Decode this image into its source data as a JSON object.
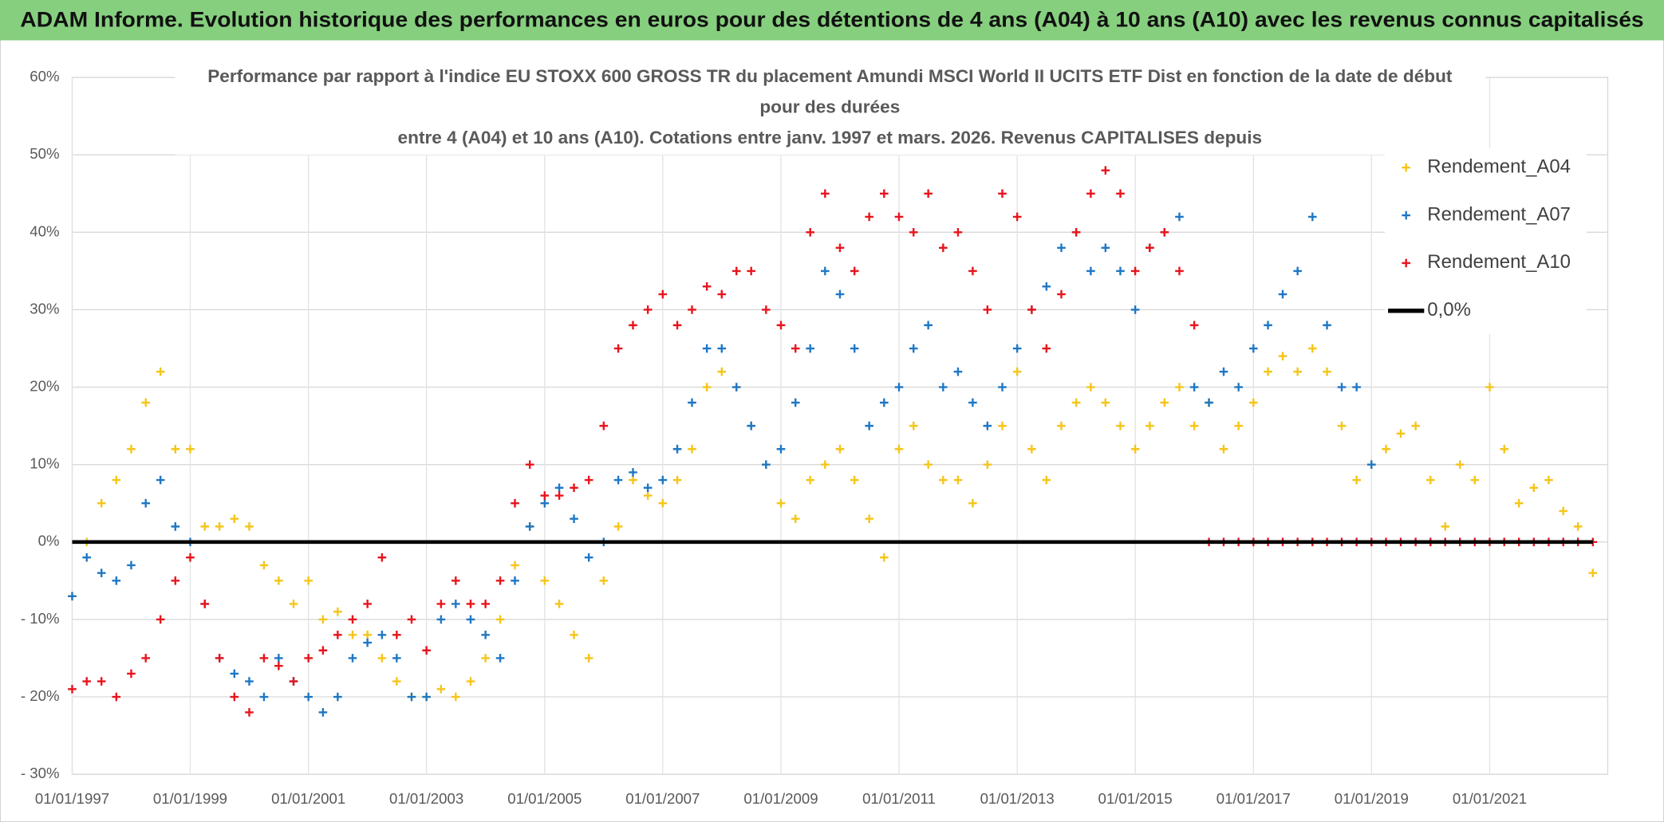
{
  "chart_data": {
    "type": "scatter",
    "header": "ADAM Informe. Evolution historique des performances en euros pour des détentions de 4 ans (A04) à 10 ans (A10) avec les revenus connus capitalisés",
    "title": [
      "Performance par rapport à l'indice EU STOXX 600 GROSS TR  du placement Amundi MSCI World II UCITS ETF Dist en fonction de la date de début",
      "pour des durées",
      "entre 4 (A04) et 10 ans (A10). Cotations entre janv. 1997 et mars. 2026. Revenus CAPITALISES depuis"
    ],
    "x": [
      "1997-01-01",
      "1997-04-01",
      "1997-07-01",
      "1997-10-01",
      "1998-01-01",
      "1998-04-01",
      "1998-07-01",
      "1998-10-01",
      "1999-01-01",
      "1999-04-01",
      "1999-07-01",
      "1999-10-01",
      "2000-01-01",
      "2000-04-01",
      "2000-07-01",
      "2000-10-01",
      "2001-01-01",
      "2001-04-01",
      "2001-07-01",
      "2001-10-01",
      "2002-01-01",
      "2002-04-01",
      "2002-07-01",
      "2002-10-01",
      "2003-01-01",
      "2003-04-01",
      "2003-07-01",
      "2003-10-01",
      "2004-01-01",
      "2004-04-01",
      "2004-07-01",
      "2004-10-01",
      "2005-01-01",
      "2005-04-01",
      "2005-07-01",
      "2005-10-01",
      "2006-01-01",
      "2006-04-01",
      "2006-07-01",
      "2006-10-01",
      "2007-01-01",
      "2007-04-01",
      "2007-07-01",
      "2007-10-01",
      "2008-01-01",
      "2008-04-01",
      "2008-07-01",
      "2008-10-01",
      "2009-01-01",
      "2009-04-01",
      "2009-07-01",
      "2009-10-01",
      "2010-01-01",
      "2010-04-01",
      "2010-07-01",
      "2010-10-01",
      "2011-01-01",
      "2011-04-01",
      "2011-07-01",
      "2011-10-01",
      "2012-01-01",
      "2012-04-01",
      "2012-07-01",
      "2012-10-01",
      "2013-01-01",
      "2013-04-01",
      "2013-07-01",
      "2013-10-01",
      "2014-01-01",
      "2014-04-01",
      "2014-07-01",
      "2014-10-01",
      "2015-01-01",
      "2015-04-01",
      "2015-07-01",
      "2015-10-01",
      "2016-01-01",
      "2016-04-01",
      "2016-07-01",
      "2016-10-01",
      "2017-01-01",
      "2017-04-01",
      "2017-07-01",
      "2017-10-01",
      "2018-01-01",
      "2018-04-01",
      "2018-07-01",
      "2018-10-01",
      "2019-01-01",
      "2019-04-01",
      "2019-07-01",
      "2019-10-01",
      "2020-01-01",
      "2020-04-01",
      "2020-07-01",
      "2020-10-01",
      "2021-01-01",
      "2021-04-01",
      "2021-07-01",
      "2021-10-01",
      "2022-01-01",
      "2022-04-01",
      "2022-07-01",
      "2022-10-01"
    ],
    "series": [
      {
        "name": "Rendement_A04",
        "color": "#f5c518",
        "marker": "+",
        "values": [
          -7,
          0,
          5,
          8,
          12,
          18,
          22,
          12,
          12,
          2,
          2,
          3,
          2,
          -3,
          -5,
          -8,
          -5,
          -10,
          -9,
          -12,
          -12,
          -15,
          -18,
          -20,
          -20,
          -19,
          -20,
          -18,
          -15,
          -10,
          -3,
          2,
          -5,
          -8,
          -12,
          -15,
          -5,
          2,
          8,
          6,
          5,
          8,
          12,
          20,
          22,
          20,
          15,
          10,
          5,
          3,
          8,
          10,
          12,
          8,
          3,
          -2,
          12,
          15,
          10,
          8,
          8,
          5,
          10,
          15,
          22,
          12,
          8,
          15,
          18,
          20,
          18,
          15,
          12,
          15,
          18,
          20,
          15,
          18,
          12,
          15,
          18,
          22,
          24,
          22,
          25,
          22,
          15,
          8,
          10,
          12,
          14,
          15,
          8,
          2,
          10,
          8,
          20,
          12,
          5,
          7,
          8,
          4,
          2,
          -4
        ]
      },
      {
        "name": "Rendement_A07",
        "color": "#1f77c4",
        "marker": "+",
        "values": [
          -7,
          -2,
          -4,
          -5,
          -3,
          5,
          8,
          2,
          0,
          -8,
          -15,
          -17,
          -18,
          -20,
          -15,
          -18,
          -20,
          -22,
          -20,
          -15,
          -13,
          -12,
          -15,
          -20,
          -20,
          -10,
          -8,
          -10,
          -12,
          -15,
          -5,
          2,
          5,
          7,
          3,
          -2,
          0,
          8,
          9,
          7,
          8,
          12,
          18,
          25,
          25,
          20,
          15,
          10,
          12,
          18,
          25,
          35,
          32,
          25,
          15,
          18,
          20,
          25,
          28,
          20,
          22,
          18,
          15,
          20,
          25,
          30,
          33,
          38,
          40,
          35,
          38,
          35,
          30,
          38,
          40,
          42,
          20,
          18,
          22,
          20,
          25,
          28,
          32,
          35,
          42,
          28,
          20,
          20,
          10,
          null,
          null,
          null,
          null,
          null,
          null,
          null,
          null,
          null,
          null,
          null,
          null,
          null,
          null,
          null
        ]
      },
      {
        "name": "Rendement_A10",
        "color": "#e8141c",
        "marker": "+",
        "values": [
          -19,
          -18,
          -18,
          -20,
          -17,
          -15,
          -10,
          -5,
          -2,
          -8,
          -15,
          -20,
          -22,
          -15,
          -16,
          -18,
          -15,
          -14,
          -12,
          -10,
          -8,
          -2,
          -12,
          -10,
          -14,
          -8,
          -5,
          -8,
          -8,
          -5,
          5,
          10,
          6,
          6,
          7,
          8,
          15,
          25,
          28,
          30,
          32,
          28,
          30,
          33,
          32,
          35,
          35,
          30,
          28,
          25,
          40,
          45,
          38,
          35,
          42,
          45,
          42,
          40,
          45,
          38,
          40,
          35,
          30,
          45,
          42,
          30,
          25,
          32,
          40,
          45,
          48,
          45,
          35,
          38,
          40,
          35,
          28,
          0,
          0,
          0,
          0,
          0,
          0,
          0,
          0,
          0,
          0,
          0,
          0,
          0,
          0,
          0,
          0,
          0,
          0,
          0,
          0,
          0,
          0,
          0,
          0,
          0,
          0,
          0
        ]
      },
      {
        "name": "0,0%",
        "color": "#000000",
        "marker": "line",
        "values": [
          0,
          0,
          0,
          0,
          0,
          0,
          0,
          0,
          0,
          0,
          0,
          0,
          0,
          0,
          0,
          0,
          0,
          0,
          0,
          0,
          0,
          0,
          0,
          0,
          0,
          0,
          0,
          0,
          0,
          0,
          0,
          0,
          0,
          0,
          0,
          0,
          0,
          0,
          0,
          0,
          0,
          0,
          0,
          0,
          0,
          0,
          0,
          0,
          0,
          0,
          0,
          0,
          0,
          0,
          0,
          0,
          0,
          0,
          0,
          0,
          0,
          0,
          0,
          0,
          0,
          0,
          0,
          0,
          0,
          0,
          0,
          0,
          0,
          0,
          0,
          0,
          0,
          0,
          0,
          0,
          0,
          0,
          0,
          0,
          0,
          0,
          0,
          0,
          0,
          0,
          0,
          0,
          0,
          0,
          0,
          0,
          0,
          0,
          0,
          0,
          0,
          0,
          0,
          0
        ]
      }
    ],
    "xlim": [
      "1997-01-01",
      "2023-01-01"
    ],
    "xticks": [
      {
        "value": "1997-01-01",
        "label": "01/01/1997"
      },
      {
        "value": "1999-01-01",
        "label": "01/01/1999"
      },
      {
        "value": "2001-01-01",
        "label": "01/01/2001"
      },
      {
        "value": "2003-01-01",
        "label": "01/01/2003"
      },
      {
        "value": "2005-01-01",
        "label": "01/01/2005"
      },
      {
        "value": "2007-01-01",
        "label": "01/01/2007"
      },
      {
        "value": "2009-01-01",
        "label": "01/01/2009"
      },
      {
        "value": "2011-01-01",
        "label": "01/01/2011"
      },
      {
        "value": "2013-01-01",
        "label": "01/01/2013"
      },
      {
        "value": "2015-01-01",
        "label": "01/01/2015"
      },
      {
        "value": "2017-01-01",
        "label": "01/01/2017"
      },
      {
        "value": "2019-01-01",
        "label": "01/01/2019"
      },
      {
        "value": "2021-01-01",
        "label": "01/01/2021"
      }
    ],
    "ylim": [
      -30,
      60
    ],
    "yticks": [
      {
        "value": -30,
        "label": "- 30%"
      },
      {
        "value": -20,
        "label": "- 20%"
      },
      {
        "value": -10,
        "label": "- 10%"
      },
      {
        "value": 0,
        "label": "0%"
      },
      {
        "value": 10,
        "label": "10%"
      },
      {
        "value": 20,
        "label": "20%"
      },
      {
        "value": 30,
        "label": "30%"
      },
      {
        "value": 40,
        "label": "40%"
      },
      {
        "value": 50,
        "label": "50%"
      },
      {
        "value": 60,
        "label": "60%"
      }
    ],
    "grid": true,
    "legend": "right"
  }
}
